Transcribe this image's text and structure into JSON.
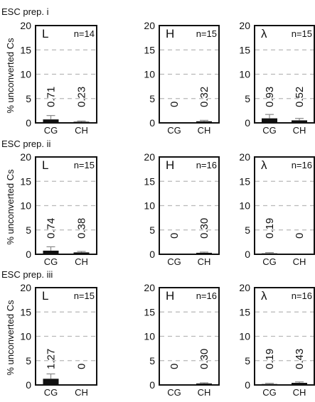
{
  "figure": {
    "y_axis_label": "% unconverted Cs",
    "y_ticks": [
      "0",
      "5",
      "10",
      "15",
      "20"
    ],
    "colors": {
      "frame": "#111111",
      "gridline": "#b8b8b8",
      "bar": "#111111",
      "error_bar": "#888888"
    }
  },
  "chart_data": [
    {
      "type": "bar",
      "prep": "ESC prep. i",
      "panel": "L",
      "n_label": "n=14",
      "categories": [
        "CG",
        "CH"
      ],
      "values": [
        0.71,
        0.23
      ],
      "value_labels": [
        "0.71",
        "0.23"
      ],
      "errors": [
        0.8,
        0.15
      ],
      "ylim": [
        0,
        20
      ],
      "ylabel": "% unconverted Cs",
      "grid": true
    },
    {
      "type": "bar",
      "prep": "ESC prep. i",
      "panel": "H",
      "n_label": "n=15",
      "categories": [
        "CG",
        "CH"
      ],
      "values": [
        0,
        0.32
      ],
      "value_labels": [
        "0",
        "0.32"
      ],
      "errors": [
        0,
        0.2
      ],
      "ylim": [
        0,
        20
      ],
      "grid": true
    },
    {
      "type": "bar",
      "prep": "ESC prep. i",
      "panel": "λ",
      "n_label": "n=15",
      "categories": [
        "CG",
        "CH"
      ],
      "values": [
        0.93,
        0.52
      ],
      "value_labels": [
        "0.93",
        "0.52"
      ],
      "errors": [
        0.8,
        0.4
      ],
      "ylim": [
        0,
        20
      ],
      "grid": true
    },
    {
      "type": "bar",
      "prep": "ESC prep. ii",
      "panel": "L",
      "n_label": "n=15",
      "categories": [
        "CG",
        "CH"
      ],
      "values": [
        0.74,
        0.38
      ],
      "value_labels": [
        "0.74",
        "0.38"
      ],
      "errors": [
        0.8,
        0.2
      ],
      "ylim": [
        0,
        20
      ],
      "ylabel": "% unconverted Cs",
      "grid": true
    },
    {
      "type": "bar",
      "prep": "ESC prep. ii",
      "panel": "H",
      "n_label": "n=16",
      "categories": [
        "CG",
        "CH"
      ],
      "values": [
        0,
        0.3
      ],
      "value_labels": [
        "0",
        "0.30"
      ],
      "errors": [
        0,
        0.15
      ],
      "ylim": [
        0,
        20
      ],
      "grid": true
    },
    {
      "type": "bar",
      "prep": "ESC prep. ii",
      "panel": "λ",
      "n_label": "n=16",
      "categories": [
        "CG",
        "CH"
      ],
      "values": [
        0.19,
        0
      ],
      "value_labels": [
        "0.19",
        "0"
      ],
      "errors": [
        0.15,
        0
      ],
      "ylim": [
        0,
        20
      ],
      "grid": true
    },
    {
      "type": "bar",
      "prep": "ESC prep. iii",
      "panel": "L",
      "n_label": "n=15",
      "categories": [
        "CG",
        "CH"
      ],
      "values": [
        1.27,
        0
      ],
      "value_labels": [
        "1.27",
        "0"
      ],
      "errors": [
        1.0,
        0
      ],
      "ylim": [
        0,
        20
      ],
      "ylabel": "% unconverted Cs",
      "grid": true
    },
    {
      "type": "bar",
      "prep": "ESC prep. iii",
      "panel": "H",
      "n_label": "n=16",
      "categories": [
        "CG",
        "CH"
      ],
      "values": [
        0,
        0.3
      ],
      "value_labels": [
        "0",
        "0.30"
      ],
      "errors": [
        0,
        0.15
      ],
      "ylim": [
        0,
        20
      ],
      "grid": true
    },
    {
      "type": "bar",
      "prep": "ESC prep. iii",
      "panel": "λ",
      "n_label": "n=16",
      "categories": [
        "CG",
        "CH"
      ],
      "values": [
        0.19,
        0.43
      ],
      "value_labels": [
        "0.19",
        "0.43"
      ],
      "errors": [
        0.15,
        0.2
      ],
      "ylim": [
        0,
        20
      ],
      "grid": true
    }
  ]
}
